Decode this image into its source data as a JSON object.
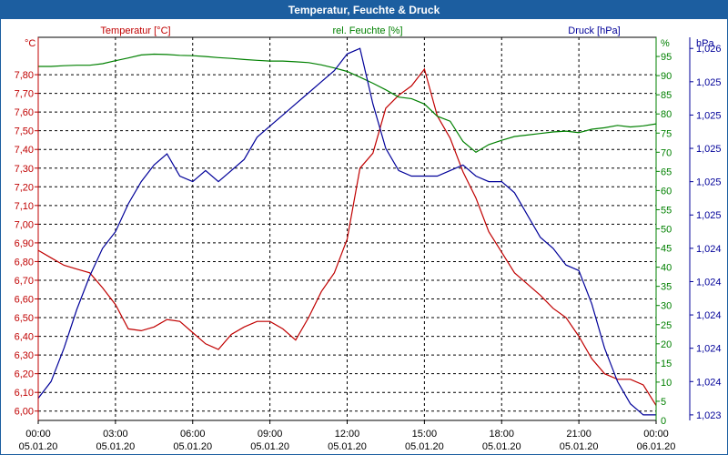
{
  "title": "Temperatur, Feuchte & Druck",
  "colors": {
    "temperature": "#c00000",
    "humidity": "#008000",
    "pressure": "#000099",
    "grid": "#000000",
    "text": "#000000",
    "title_bg": "#1c5ea0"
  },
  "chart_data": {
    "type": "line",
    "title": "Temperatur, Feuchte & Druck",
    "x_ticks": [
      {
        "time": "00:00",
        "date": "05.01.20"
      },
      {
        "time": "03:00",
        "date": "05.01.20"
      },
      {
        "time": "06:00",
        "date": "05.01.20"
      },
      {
        "time": "09:00",
        "date": "05.01.20"
      },
      {
        "time": "12:00",
        "date": "05.01.20"
      },
      {
        "time": "15:00",
        "date": "05.01.20"
      },
      {
        "time": "18:00",
        "date": "05.01.20"
      },
      {
        "time": "21:00",
        "date": "05.01.20"
      },
      {
        "time": "00:00",
        "date": "06.01.20"
      }
    ],
    "x_range_hours": [
      0,
      24
    ],
    "axes": {
      "temperature": {
        "label": "Temperatur [°C]",
        "unit": "°C",
        "range": [
          5.95,
          8.0
        ],
        "ticks": [
          "6,00",
          "6,10",
          "6,20",
          "6,30",
          "6,40",
          "6,50",
          "6,60",
          "6,70",
          "6,80",
          "6,90",
          "7,00",
          "7,10",
          "7,20",
          "7,30",
          "7,40",
          "7,50",
          "7,60",
          "7,70",
          "7,80"
        ],
        "tick_values": [
          6.0,
          6.1,
          6.2,
          6.3,
          6.4,
          6.5,
          6.6,
          6.7,
          6.8,
          6.9,
          7.0,
          7.1,
          7.2,
          7.3,
          7.4,
          7.5,
          7.6,
          7.7,
          7.8
        ]
      },
      "humidity": {
        "label": "rel. Feuchte [%]",
        "unit": "%",
        "range": [
          0,
          100
        ],
        "ticks": [
          "5",
          "10",
          "15",
          "20",
          "25",
          "30",
          "35",
          "40",
          "45",
          "50",
          "55",
          "60",
          "65",
          "70",
          "75",
          "80",
          "85",
          "90",
          "95"
        ],
        "tick_values": [
          5,
          10,
          15,
          20,
          25,
          30,
          35,
          40,
          45,
          50,
          55,
          60,
          65,
          70,
          75,
          80,
          85,
          90,
          95
        ]
      },
      "pressure": {
        "label": "Druck [hPa]",
        "unit": "hPa",
        "range": [
          1022.95,
          1026.4
        ],
        "ticks": [
          "1,023",
          "1,024",
          "1,024",
          "1,024",
          "1,024",
          "1,024",
          "1,025",
          "1,025",
          "1,025",
          "1,025",
          "1,025",
          "1,026",
          "1,026",
          "1,026"
        ],
        "tick_values": [
          1023.0,
          1023.3,
          1023.6,
          1023.9,
          1024.2,
          1024.5,
          1024.8,
          1025.1,
          1025.4,
          1025.7,
          1026.0,
          1026.3,
          1026.6,
          1026.9
        ]
      }
    },
    "series": [
      {
        "name": "Temperatur [°C]",
        "axis": "temperature",
        "x": [
          0,
          0.5,
          1,
          1.5,
          2,
          2.5,
          3,
          3.5,
          4,
          4.5,
          5,
          5.5,
          6,
          6.5,
          7,
          7.5,
          8,
          8.5,
          9,
          9.5,
          10,
          10.5,
          11,
          11.5,
          12,
          12.5,
          13,
          13.5,
          14,
          14.5,
          15,
          15.5,
          16,
          16.5,
          17,
          17.5,
          18,
          18.5,
          19,
          19.5,
          20,
          20.5,
          21,
          21.5,
          22,
          22.5,
          23,
          23.5,
          24
        ],
        "values": [
          6.86,
          6.82,
          6.78,
          6.76,
          6.74,
          6.66,
          6.57,
          6.44,
          6.43,
          6.45,
          6.49,
          6.48,
          6.42,
          6.36,
          6.33,
          6.41,
          6.45,
          6.48,
          6.48,
          6.44,
          6.38,
          6.5,
          6.64,
          6.74,
          6.92,
          7.3,
          7.38,
          7.62,
          7.69,
          7.74,
          7.83,
          7.58,
          7.46,
          7.28,
          7.14,
          6.96,
          6.85,
          6.74,
          6.68,
          6.62,
          6.55,
          6.5,
          6.4,
          6.28,
          6.2,
          6.17,
          6.17,
          6.14,
          6.03
        ]
      },
      {
        "name": "rel. Feuchte [%]",
        "axis": "humidity",
        "x": [
          0,
          0.5,
          1,
          1.5,
          2,
          2.5,
          3,
          3.5,
          4,
          4.5,
          5,
          5.5,
          6,
          6.5,
          7,
          7.5,
          8,
          8.5,
          9,
          9.5,
          10,
          10.5,
          11,
          11.5,
          12,
          12.5,
          13,
          13.5,
          14,
          14.5,
          15,
          15.5,
          16,
          16.5,
          17,
          17.5,
          18,
          18.5,
          19,
          19.5,
          20,
          20.5,
          21,
          21.5,
          22,
          22.5,
          23,
          23.5,
          24
        ],
        "values": [
          92.4,
          92.4,
          92.6,
          92.7,
          92.7,
          93.1,
          93.9,
          94.6,
          95.4,
          95.6,
          95.5,
          95.3,
          95.2,
          95.0,
          94.7,
          94.5,
          94.2,
          94.0,
          93.8,
          93.8,
          93.6,
          93.4,
          92.8,
          92.0,
          91.1,
          89.6,
          88.0,
          86.3,
          84.4,
          84.0,
          82.6,
          79.4,
          78.1,
          72.8,
          70.0,
          72.0,
          73.1,
          74.1,
          74.5,
          74.9,
          75.3,
          75.5,
          75.1,
          76.0,
          76.4,
          77.0,
          76.6,
          76.9,
          77.4
        ]
      },
      {
        "name": "Druck [hPa]",
        "axis": "pressure",
        "x": [
          0,
          0.5,
          1,
          1.5,
          2,
          2.5,
          3,
          3.5,
          4,
          4.5,
          5,
          5.5,
          6,
          6.5,
          7,
          7.5,
          8,
          8.5,
          9,
          9.5,
          10,
          10.5,
          11,
          11.5,
          12,
          12.5,
          13,
          13.5,
          14,
          14.5,
          15,
          15.5,
          16,
          16.5,
          17,
          17.5,
          18,
          18.5,
          19,
          19.5,
          20,
          20.5,
          21,
          21.5,
          22,
          22.5,
          23,
          23.5,
          24
        ],
        "values": [
          1023.15,
          1023.3,
          1023.6,
          1023.95,
          1024.25,
          1024.5,
          1024.65,
          1024.9,
          1025.1,
          1025.25,
          1025.35,
          1025.15,
          1025.1,
          1025.2,
          1025.1,
          1025.2,
          1025.3,
          1025.5,
          1025.6,
          1025.7,
          1025.8,
          1025.9,
          1026.0,
          1026.1,
          1026.25,
          1026.3,
          1025.8,
          1025.4,
          1025.2,
          1025.15,
          1025.15,
          1025.15,
          1025.2,
          1025.25,
          1025.15,
          1025.1,
          1025.1,
          1025.0,
          1024.8,
          1024.6,
          1024.5,
          1024.35,
          1024.3,
          1024.0,
          1023.6,
          1023.3,
          1023.1,
          1023.0,
          1023.0
        ]
      }
    ]
  }
}
